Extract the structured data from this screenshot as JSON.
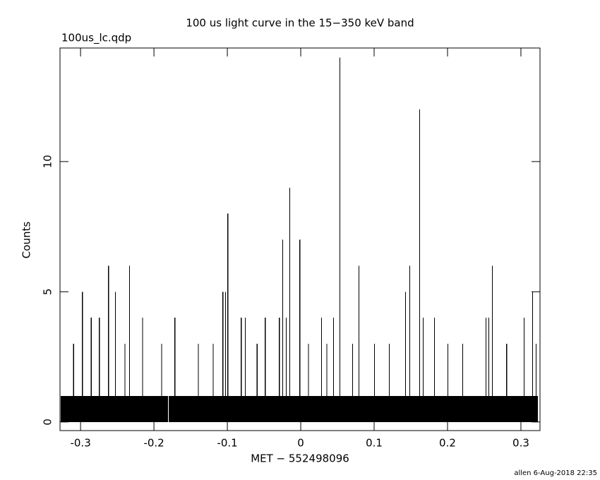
{
  "chart_data": {
    "type": "step",
    "title": "100 us light curve in the 15−350 keV band",
    "subtitle": "100us_lc.qdp",
    "x_label": "MET − 552498096",
    "y_label": "Counts",
    "footer": "allen  6-Aug-2018 22:35",
    "color": "#000000",
    "xlim": [
      -0.328,
      0.326
    ],
    "ylim": [
      -0.33,
      14.36
    ],
    "xticks": [
      -0.3,
      -0.2,
      -0.1,
      0,
      0.1,
      0.2,
      0.3
    ],
    "yticks": [
      0,
      5,
      10
    ],
    "x": [
      -0.327,
      -0.31,
      -0.3099,
      -0.298,
      -0.2979,
      -0.286,
      -0.2859,
      -0.275,
      -0.2749,
      -0.2625,
      -0.2624,
      -0.253,
      -0.2529,
      -0.24,
      -0.2399,
      -0.2337,
      -0.2336,
      -0.216,
      -0.2159,
      -0.19,
      -0.1899,
      -0.1808,
      -0.1798,
      -0.172,
      -0.1719,
      -0.14,
      -0.1399,
      -0.12,
      -0.1199,
      -0.1067,
      -0.1066,
      -0.103,
      -0.1029,
      -0.1,
      -0.0999,
      -0.0817,
      -0.0816,
      -0.076,
      -0.0759,
      -0.06,
      -0.0599,
      -0.049,
      -0.0489,
      -0.0298,
      -0.0297,
      -0.025,
      -0.0249,
      -0.0202,
      -0.0201,
      -0.0154,
      -0.0153,
      -0.0019,
      -0.0018,
      0.01,
      0.0101,
      0.0279,
      0.028,
      0.035,
      0.0351,
      0.0442,
      0.0443,
      0.0529,
      0.053,
      0.07,
      0.0701,
      0.0788,
      0.0789,
      0.1,
      0.1001,
      0.12,
      0.1201,
      0.1423,
      0.1424,
      0.148,
      0.1481,
      0.1615,
      0.1616,
      0.1663,
      0.1664,
      0.1817,
      0.1818,
      0.2,
      0.2001,
      0.22,
      0.2201,
      0.2519,
      0.252,
      0.2558,
      0.2559,
      0.2606,
      0.2607,
      0.28,
      0.2801,
      0.3038,
      0.3039,
      0.3154,
      0.3155,
      0.32,
      0.3201,
      0.3232
    ],
    "values": [
      1,
      3,
      1,
      5,
      1,
      4,
      1,
      4,
      1,
      6,
      1,
      5,
      1,
      3,
      1,
      6,
      1,
      4,
      1,
      3,
      1,
      0,
      1,
      4,
      1,
      3,
      1,
      3,
      1,
      5,
      1,
      5,
      1,
      8,
      1,
      4,
      1,
      4,
      1,
      3,
      1,
      4,
      1,
      4,
      1,
      7,
      1,
      4,
      1,
      9,
      1,
      7,
      1,
      3,
      1,
      4,
      1,
      3,
      1,
      4,
      1,
      14,
      1,
      3,
      1,
      6,
      1,
      3,
      1,
      3,
      1,
      5,
      1,
      6,
      1,
      12,
      1,
      4,
      1,
      4,
      1,
      3,
      1,
      3,
      1,
      4,
      1,
      4,
      1,
      6,
      1,
      3,
      1,
      4,
      1,
      5,
      1,
      3,
      1,
      0
    ]
  }
}
